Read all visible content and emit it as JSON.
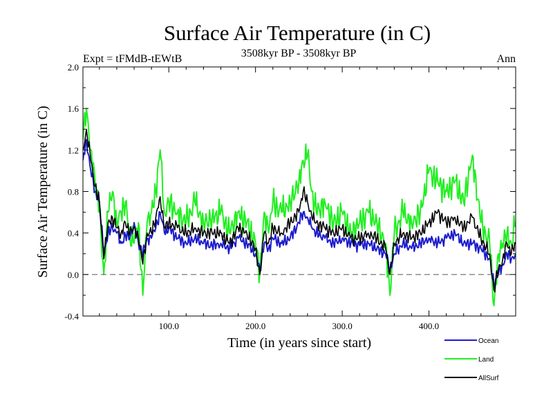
{
  "chart_data": {
    "type": "line",
    "title": "Surface Air Temperature (in C)",
    "subtitle": "3508kyr BP - 3508kyr BP",
    "left_label": "Expt = tFMdB-tEWtB",
    "right_label": "Ann",
    "xlabel": "Time (in years since start)",
    "ylabel": "Surface Air Temperature (in C)",
    "xlim": [
      1,
      500
    ],
    "ylim": [
      -0.4,
      2.0
    ],
    "x_ticks": [
      100,
      200,
      300,
      400
    ],
    "x_tick_labels": [
      "100.0",
      "200.0",
      "300.0",
      "400.0"
    ],
    "y_ticks": [
      -0.4,
      0.0,
      0.4,
      0.8,
      1.2,
      1.6,
      2.0
    ],
    "y_tick_labels": [
      "-0.4",
      "0.0",
      "0.4",
      "0.8",
      "1.2",
      "1.6",
      "2.0"
    ],
    "reference_line": 0.0,
    "legend_position": "bottom-right",
    "x": [
      1,
      5,
      10,
      15,
      20,
      25,
      30,
      35,
      40,
      45,
      50,
      55,
      60,
      65,
      70,
      75,
      80,
      85,
      90,
      95,
      100,
      110,
      120,
      130,
      140,
      150,
      160,
      170,
      180,
      190,
      200,
      205,
      210,
      215,
      220,
      230,
      240,
      250,
      255,
      260,
      265,
      270,
      280,
      290,
      300,
      310,
      320,
      330,
      340,
      350,
      355,
      360,
      370,
      380,
      390,
      400,
      410,
      420,
      430,
      440,
      450,
      460,
      470,
      475,
      480,
      485,
      490,
      495,
      500
    ],
    "series": [
      {
        "name": "Ocean",
        "color": "#1c1ccc",
        "values": [
          1.1,
          1.3,
          1.0,
          0.8,
          0.7,
          0.2,
          0.4,
          0.45,
          0.4,
          0.3,
          0.38,
          0.35,
          0.5,
          0.3,
          0.2,
          0.35,
          0.35,
          0.45,
          0.6,
          0.4,
          0.45,
          0.35,
          0.3,
          0.35,
          0.3,
          0.28,
          0.3,
          0.25,
          0.35,
          0.3,
          0.2,
          0.05,
          0.3,
          0.25,
          0.35,
          0.3,
          0.35,
          0.5,
          0.6,
          0.55,
          0.45,
          0.4,
          0.35,
          0.3,
          0.35,
          0.3,
          0.28,
          0.3,
          0.25,
          0.2,
          0.05,
          0.2,
          0.3,
          0.25,
          0.3,
          0.35,
          0.3,
          0.35,
          0.4,
          0.3,
          0.3,
          0.25,
          0.15,
          -0.1,
          0.0,
          0.1,
          0.2,
          0.15,
          0.2
        ]
      },
      {
        "name": "Land",
        "color": "#22ee22",
        "values": [
          1.3,
          1.6,
          1.2,
          0.9,
          0.6,
          0.0,
          0.6,
          0.8,
          0.5,
          0.6,
          0.7,
          0.4,
          0.3,
          0.5,
          -0.2,
          0.5,
          0.6,
          0.8,
          1.2,
          0.6,
          0.7,
          0.6,
          0.5,
          0.7,
          0.5,
          0.55,
          0.6,
          0.4,
          0.6,
          0.5,
          0.3,
          0.0,
          0.6,
          0.4,
          0.7,
          0.6,
          0.7,
          0.9,
          1.1,
          1.15,
          0.8,
          0.6,
          0.7,
          0.5,
          0.6,
          0.4,
          0.5,
          0.6,
          0.5,
          0.3,
          -0.2,
          0.4,
          0.6,
          0.5,
          0.6,
          1.0,
          0.9,
          0.8,
          0.9,
          0.7,
          1.15,
          0.5,
          0.3,
          -0.3,
          0.2,
          0.3,
          0.4,
          0.3,
          0.5
        ]
      },
      {
        "name": "AllSurf",
        "color": "#000000",
        "values": [
          1.2,
          1.4,
          1.1,
          0.85,
          0.7,
          0.15,
          0.5,
          0.55,
          0.45,
          0.4,
          0.5,
          0.4,
          0.45,
          0.35,
          0.1,
          0.4,
          0.4,
          0.55,
          0.75,
          0.45,
          0.5,
          0.45,
          0.4,
          0.45,
          0.4,
          0.4,
          0.4,
          0.3,
          0.45,
          0.4,
          0.25,
          0.0,
          0.4,
          0.3,
          0.45,
          0.4,
          0.5,
          0.6,
          0.8,
          0.7,
          0.55,
          0.5,
          0.45,
          0.4,
          0.45,
          0.35,
          0.35,
          0.4,
          0.35,
          0.25,
          0.0,
          0.3,
          0.4,
          0.35,
          0.4,
          0.5,
          0.6,
          0.5,
          0.55,
          0.45,
          0.55,
          0.35,
          0.2,
          -0.15,
          0.05,
          0.15,
          0.3,
          0.2,
          0.3
        ]
      }
    ]
  }
}
